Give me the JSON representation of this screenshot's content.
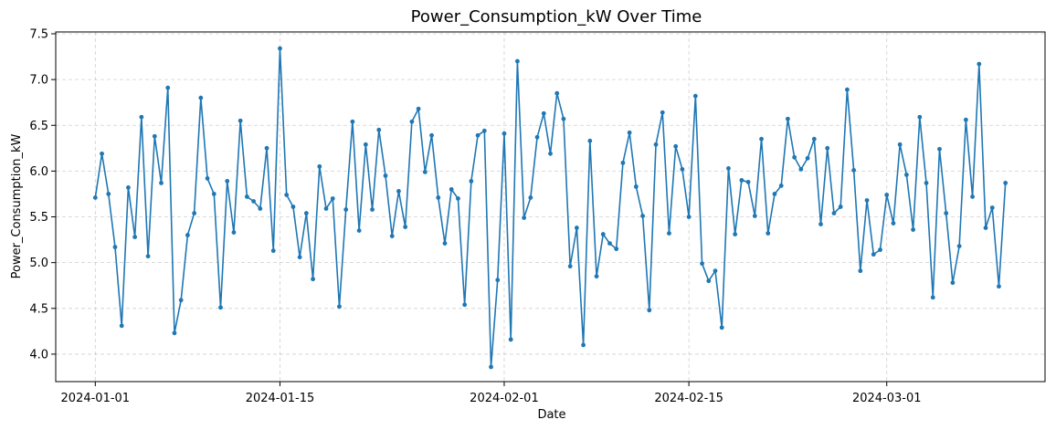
{
  "chart_data": {
    "type": "line",
    "title": "Power_Consumption_kW Over Time",
    "xlabel": "Date",
    "ylabel": "Power_Consumption_kW",
    "x_axis_type": "date",
    "xlim": [
      "2023-12-29",
      "2024-03-13"
    ],
    "ylim": [
      3.7,
      7.52
    ],
    "grid": true,
    "grid_style": "dashed",
    "marker": "circle",
    "line_color": "#1f77b4",
    "x_ticks": [
      "2024-01-01",
      "2024-01-15",
      "2024-02-01",
      "2024-02-15",
      "2024-03-01"
    ],
    "y_ticks": [
      "4.0",
      "4.5",
      "5.0",
      "5.5",
      "6.0",
      "6.5",
      "7.0",
      "7.5"
    ],
    "series": [
      {
        "x_start": "2024-01-01",
        "x_step": "12h",
        "values": [
          5.71,
          6.19,
          5.75,
          5.17,
          4.31,
          5.82,
          5.28,
          6.59,
          5.07,
          6.38,
          5.87,
          6.91,
          4.23,
          4.59,
          5.3,
          5.54,
          6.8,
          5.92,
          5.75,
          4.51,
          5.89,
          5.33,
          6.55,
          5.72,
          5.67,
          5.59,
          6.25,
          5.13,
          7.34,
          5.74,
          5.61,
          5.06,
          5.54,
          4.82,
          6.05,
          5.59,
          5.7,
          4.52,
          5.58,
          6.54,
          5.35,
          6.29,
          5.58,
          6.45,
          5.95,
          5.29,
          5.78,
          5.39,
          6.54,
          6.68,
          5.99,
          6.39,
          5.71,
          5.21,
          5.8,
          5.7,
          4.54,
          5.89,
          6.39,
          6.44,
          3.86,
          4.81,
          6.41,
          4.16,
          7.2,
          5.49,
          5.71,
          6.37,
          6.63,
          6.19,
          6.85,
          6.57,
          4.96,
          5.38,
          4.1,
          6.33,
          4.85,
          5.31,
          5.21,
          5.15,
          6.09,
          6.42,
          5.83,
          5.51,
          4.48,
          6.29,
          6.64,
          5.32,
          6.27,
          6.02,
          5.5,
          6.82,
          4.99,
          4.8,
          4.91,
          4.29,
          6.03,
          5.31,
          5.9,
          5.88,
          5.51,
          6.35,
          5.32,
          5.75,
          5.84,
          6.57,
          6.15,
          6.02,
          6.14,
          6.35,
          5.42,
          6.25,
          5.54,
          5.61,
          6.89,
          6.01,
          4.91,
          5.68,
          5.09,
          5.14,
          5.74,
          5.43,
          6.29,
          5.96,
          5.36,
          6.59,
          5.87,
          4.62,
          6.24,
          5.54,
          4.78,
          5.18,
          6.56,
          5.72,
          7.17,
          5.38,
          5.6,
          4.74,
          5.87
        ]
      }
    ]
  }
}
